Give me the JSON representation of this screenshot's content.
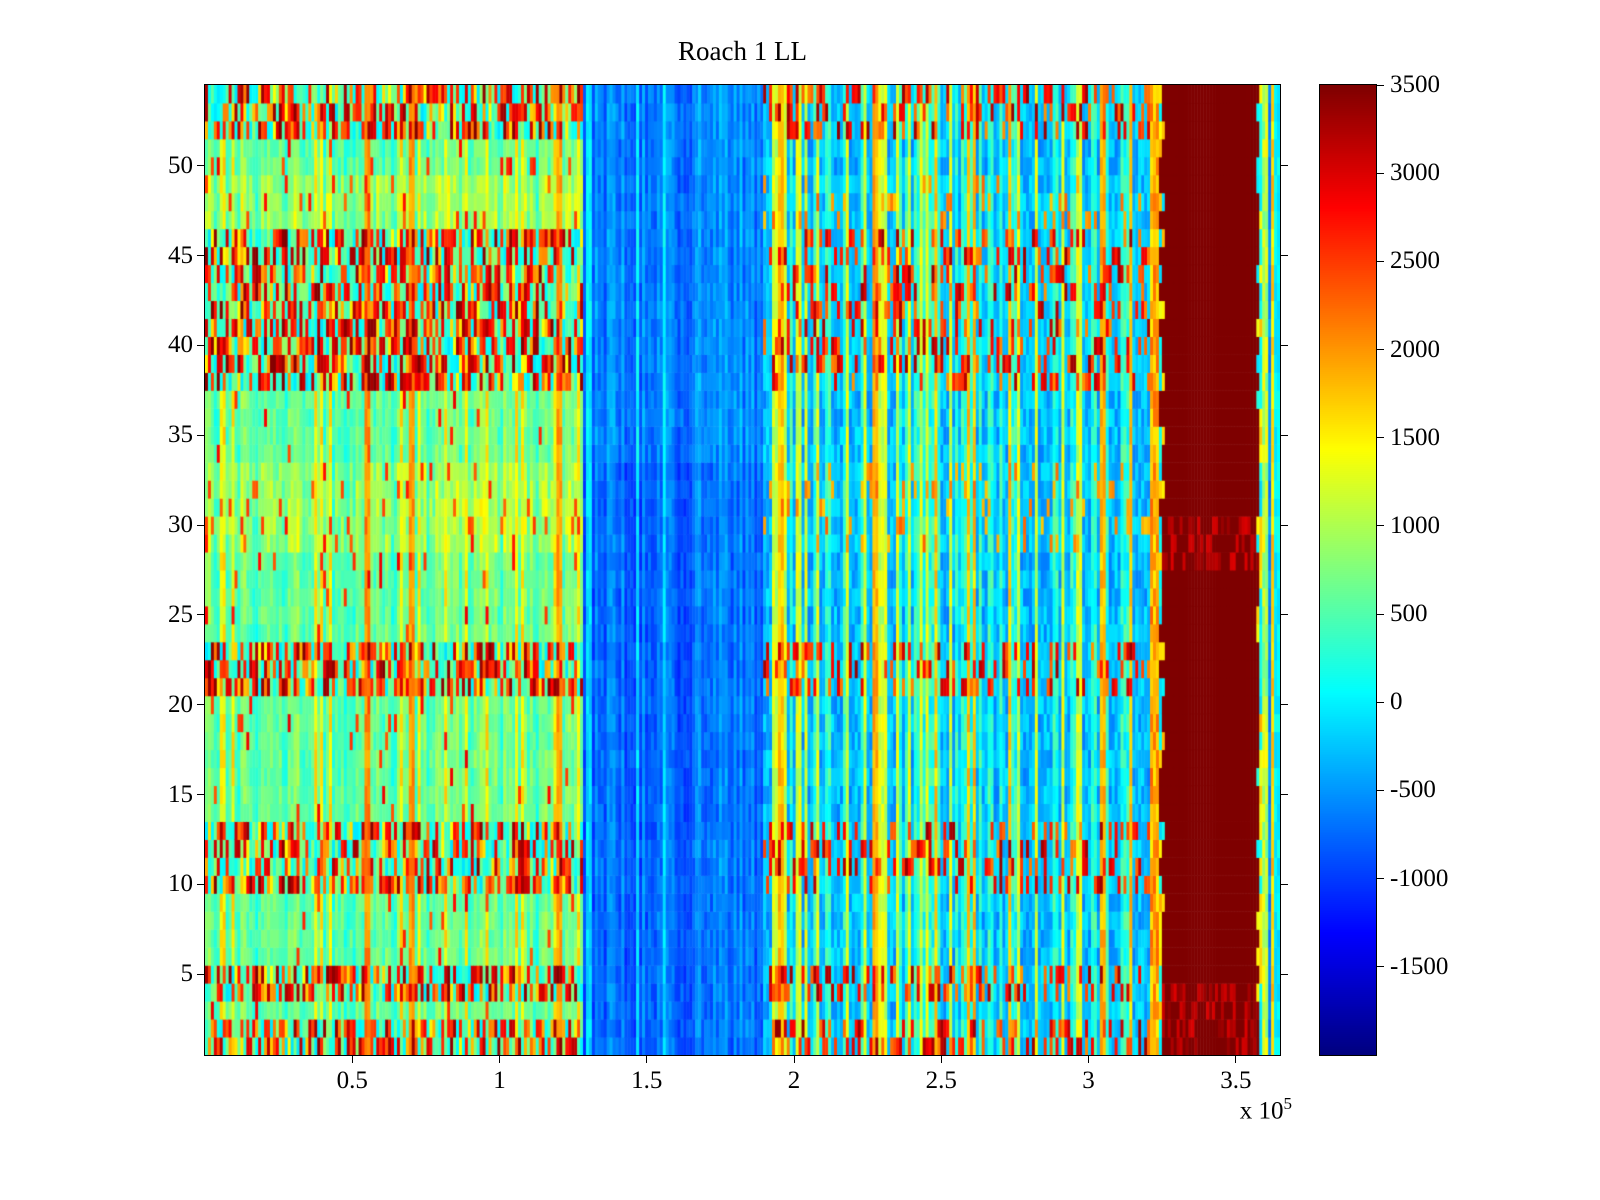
{
  "figure": {
    "title": "Roach 1 LL",
    "x_exponent_prefix": "x 10",
    "x_exponent_power": "5"
  },
  "chart_data": {
    "type": "heatmap",
    "title": "Roach 1 LL",
    "colormap": "jet",
    "x_scale_factor": 100000,
    "x_range": [
      0,
      3.65
    ],
    "x_ticks": [
      0.5,
      1,
      1.5,
      2,
      2.5,
      3,
      3.5
    ],
    "y_range": [
      0.5,
      54.5
    ],
    "y_ticks": [
      5,
      10,
      15,
      20,
      25,
      30,
      35,
      40,
      45,
      50
    ],
    "rows": 54,
    "cols": 364,
    "value_range": [
      -2000,
      3500
    ],
    "colorbar_ticks": [
      3500,
      3000,
      2500,
      2000,
      1500,
      1000,
      500,
      0,
      -500,
      -1000,
      -1500
    ],
    "regions": [
      {
        "name": "left-mixed-activity",
        "style": "A",
        "x0": 0,
        "x1": 1.28
      },
      {
        "name": "quiet-blue",
        "style": "B",
        "x0": 1.28,
        "x1": 1.9
      },
      {
        "name": "right-mixed-activity",
        "style": "C",
        "x0": 1.9,
        "x1": 3.21
      },
      {
        "name": "yellow-transition",
        "style": "Y",
        "x0": 3.21,
        "x1": 3.24
      },
      {
        "name": "saturated-red-block",
        "style": "D",
        "x0": 3.24,
        "x1": 3.585
      },
      {
        "name": "right-edge-strip",
        "style": "E",
        "x0": 3.585,
        "x1": 3.65
      }
    ],
    "row_bands": [
      {
        "rows": [
          1,
          2
        ],
        "type": "hot"
      },
      {
        "rows": [
          3,
          3
        ],
        "type": "cool"
      },
      {
        "rows": [
          4,
          5
        ],
        "type": "hot"
      },
      {
        "rows": [
          6,
          9
        ],
        "type": "cool"
      },
      {
        "rows": [
          10,
          13
        ],
        "type": "hot"
      },
      {
        "rows": [
          14,
          20
        ],
        "type": "cool"
      },
      {
        "rows": [
          21,
          23
        ],
        "type": "hot"
      },
      {
        "rows": [
          24,
          28
        ],
        "type": "cool"
      },
      {
        "rows": [
          29,
          33
        ],
        "type": "warm"
      },
      {
        "rows": [
          34,
          37
        ],
        "type": "cool"
      },
      {
        "rows": [
          38,
          46
        ],
        "type": "hot"
      },
      {
        "rows": [
          47,
          49
        ],
        "type": "warm"
      },
      {
        "rows": [
          50,
          51
        ],
        "type": "cool"
      },
      {
        "rows": [
          52,
          54
        ],
        "type": "hot"
      }
    ],
    "vertical_stripes": [
      {
        "x": 0.55,
        "w": 0.022,
        "level": 1800
      },
      {
        "x": 0.7,
        "w": 0.016,
        "level": 1750
      },
      {
        "x": 1.2,
        "w": 0.02,
        "level": 1700
      },
      {
        "x": 1.95,
        "w": 0.014,
        "level": 1500
      },
      {
        "x": 2.28,
        "w": 0.02,
        "level": 1600
      },
      {
        "x": 3.05,
        "w": 0.018,
        "level": 1550
      }
    ],
    "d_block_speckle_rows": [
      [
        1,
        4
      ],
      [
        28,
        30
      ]
    ]
  }
}
